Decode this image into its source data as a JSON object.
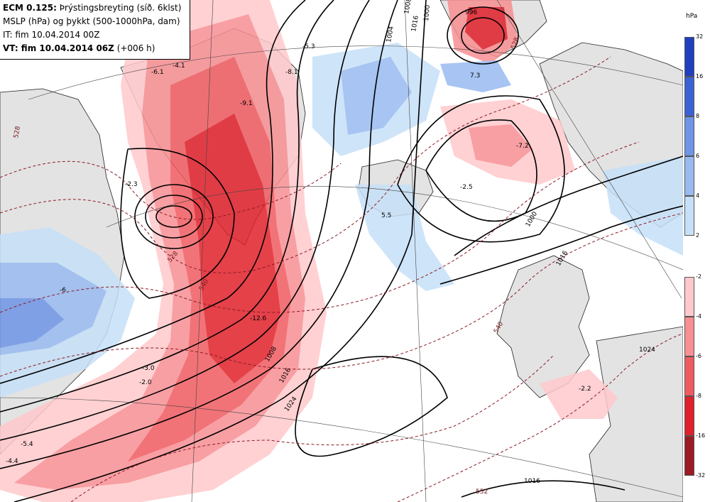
{
  "header": {
    "line1_bold": "ECM 0.125:",
    "line1_rest": " Þrýstingsbreyting (síð. 6klst)",
    "line2": "MSLP (hPa) og þykkt (500-1000hPa, dam)",
    "line3": "IT: fim 10.04.2014 00Z",
    "line4_bold": "VT: fim 10.04.2014 06Z",
    "line4_rest": " (+006 h)"
  },
  "colorbar": {
    "unit": "hPa",
    "positive": [
      {
        "label": "32",
        "color": "#1f3fbf"
      },
      {
        "label": "16",
        "color": "#3a62d6"
      },
      {
        "label": "8",
        "color": "#6f95e6"
      },
      {
        "label": "6",
        "color": "#98baf0"
      },
      {
        "label": "4",
        "color": "#c6e0f8"
      },
      {
        "label": "2",
        "color": "#ffffff"
      }
    ],
    "negative": [
      {
        "label": "-2",
        "color": "#ffc9cc"
      },
      {
        "label": "-4",
        "color": "#f78f93"
      },
      {
        "label": "-6",
        "color": "#ef5b60"
      },
      {
        "label": "-8",
        "color": "#e0202a"
      },
      {
        "label": "-16",
        "color": "#9c1a22"
      },
      {
        "label": "-32",
        "color": "#ffffff"
      }
    ]
  },
  "map_labels": {
    "isobars": [
      "1016",
      "1016",
      "1008",
      "1004",
      "1000",
      "1000",
      "1016",
      "1024",
      "1016",
      "1024",
      "996",
      "1008"
    ],
    "thickness": [
      "528",
      "540",
      "528",
      "540",
      "552",
      "528"
    ],
    "tendency": [
      "-5.3",
      "-6.1",
      "-8.1",
      "-4.1",
      "-9.1",
      "-7.2",
      "-2.5",
      "7.3",
      "5.5",
      "-3.0",
      "-2.0",
      "-5.4",
      "-4.4",
      "-2.2",
      "-12.6",
      "-2.3",
      "-6"
    ]
  }
}
